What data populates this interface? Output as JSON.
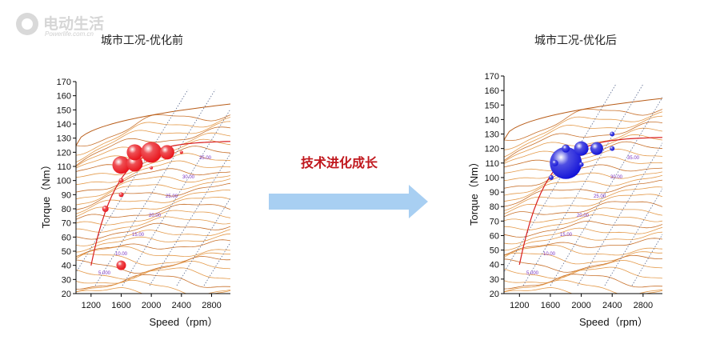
{
  "logo": {
    "name": "电动生活",
    "domain": "Powerlife.com.cn"
  },
  "middle_label": "技术进化成长",
  "chart_data": [
    {
      "type": "scatter",
      "title": "城市工况-优化前",
      "xlabel": "Speed（rpm）",
      "ylabel": "Torque（Nm）",
      "xlim": [
        1000,
        3050
      ],
      "ylim": [
        20,
        170
      ],
      "xticks": [
        1200,
        1600,
        2000,
        2400,
        2800
      ],
      "yticks": [
        20,
        30,
        40,
        50,
        60,
        70,
        80,
        90,
        100,
        110,
        120,
        130,
        140,
        150,
        160,
        170
      ],
      "bubble_color": "#e8141b",
      "contour_labels": [
        "5.000",
        "10.00",
        "15.00",
        "20.00",
        "25.00",
        "30.00",
        "35.00"
      ],
      "points": [
        {
          "x": 1600,
          "y": 40,
          "size": 6
        },
        {
          "x": 1390,
          "y": 80,
          "size": 4
        },
        {
          "x": 1600,
          "y": 90,
          "size": 3
        },
        {
          "x": 1600,
          "y": 100,
          "size": 3
        },
        {
          "x": 1600,
          "y": 111,
          "size": 11
        },
        {
          "x": 1780,
          "y": 112,
          "size": 10
        },
        {
          "x": 1780,
          "y": 120,
          "size": 10
        },
        {
          "x": 2000,
          "y": 120,
          "size": 13
        },
        {
          "x": 2210,
          "y": 120,
          "size": 9
        },
        {
          "x": 2400,
          "y": 120,
          "size": 2
        },
        {
          "x": 2000,
          "y": 109,
          "size": 2
        }
      ]
    },
    {
      "type": "scatter",
      "title": "城市工况-优化后",
      "xlabel": "Speed（rpm）",
      "ylabel": "Torque（Nm）",
      "xlim": [
        1000,
        3050
      ],
      "ylim": [
        20,
        170
      ],
      "xticks": [
        1200,
        1600,
        2000,
        2400,
        2800
      ],
      "yticks": [
        20,
        30,
        40,
        50,
        60,
        70,
        80,
        90,
        100,
        110,
        120,
        130,
        140,
        150,
        160,
        170
      ],
      "bubble_color": "#1414d8",
      "contour_labels": [
        "5.000",
        "10.00",
        "15.00",
        "20.00",
        "25.00",
        "30.00",
        "35.00"
      ],
      "points": [
        {
          "x": 1800,
          "y": 110,
          "size": 20
        },
        {
          "x": 2000,
          "y": 120,
          "size": 9
        },
        {
          "x": 2200,
          "y": 120,
          "size": 8
        },
        {
          "x": 1660,
          "y": 110,
          "size": 4
        },
        {
          "x": 1800,
          "y": 120,
          "size": 5
        },
        {
          "x": 1610,
          "y": 100,
          "size": 3
        },
        {
          "x": 2400,
          "y": 120,
          "size": 3
        },
        {
          "x": 2400,
          "y": 130,
          "size": 3
        },
        {
          "x": 2000,
          "y": 109,
          "size": 3
        }
      ]
    }
  ]
}
